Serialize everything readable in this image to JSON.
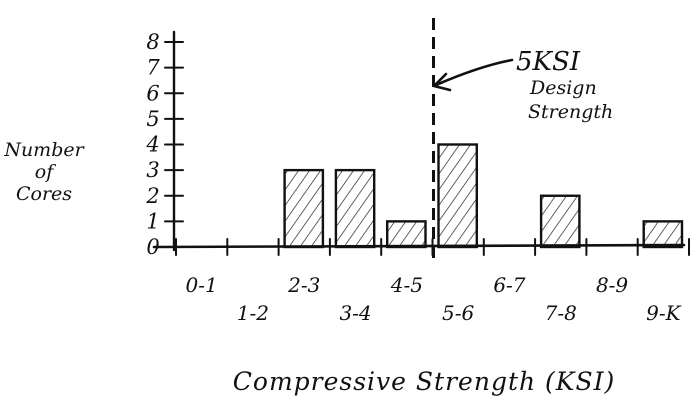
{
  "chart_data": {
    "type": "bar",
    "title": "",
    "xlabel": "Compressive Strength (KSI)",
    "ylabel": "Number of Cores",
    "ylabel_lines": [
      "Number",
      "of",
      "Cores"
    ],
    "categories": [
      "0-1",
      "1-2",
      "2-3",
      "3-4",
      "4-5",
      "5-6",
      "6-7",
      "7-8",
      "8-9",
      "9-10"
    ],
    "category_labels": [
      "0-1",
      "1-2",
      "2-3",
      "3-4",
      "4-5",
      "5-6",
      "6-7",
      "7-8",
      "8-9",
      "9-K"
    ],
    "values": [
      0,
      0,
      3,
      3,
      1,
      4,
      0,
      2,
      0,
      1
    ],
    "y_ticks": [
      "0",
      "1",
      "2",
      "3",
      "4",
      "5",
      "6",
      "7",
      "8"
    ],
    "ylim": [
      0,
      8
    ],
    "grid": false,
    "bar_fill": "hatched",
    "annotation": {
      "lines": [
        "5KSI",
        "Design",
        "Strength"
      ],
      "x": 5.0,
      "style": "dashed vertical line with arrow"
    },
    "colors": {
      "ink": "#111111",
      "background": "#ffffff"
    }
  }
}
